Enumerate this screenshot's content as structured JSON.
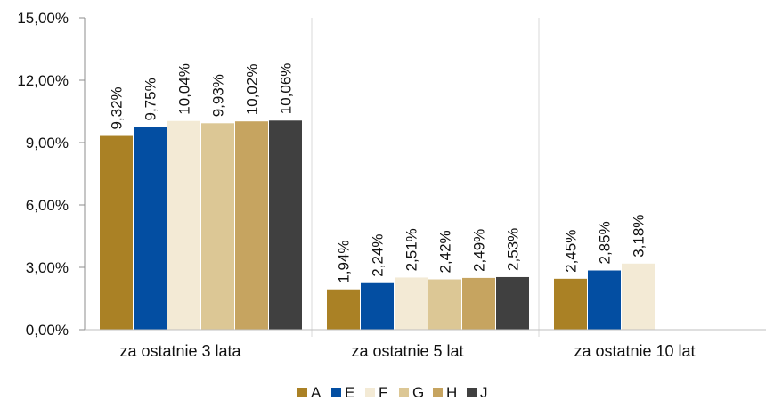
{
  "chart_data": {
    "type": "bar",
    "categories": [
      "za ostatnie 3 lata",
      "za ostatnie 5 lat",
      "za ostatnie 10 lat"
    ],
    "series": [
      {
        "name": "A",
        "color": "#AA8125",
        "values": [
          9.32,
          1.94,
          2.45
        ],
        "labels": [
          "9,32%",
          "1,94%",
          "2,45%"
        ]
      },
      {
        "name": "E",
        "color": "#034EA2",
        "values": [
          9.75,
          2.24,
          2.85
        ],
        "labels": [
          "9,75%",
          "2,24%",
          "2,85%"
        ]
      },
      {
        "name": "F",
        "color": "#F3EAD5",
        "values": [
          10.04,
          2.51,
          3.18
        ],
        "labels": [
          "10,04%",
          "2,51%",
          "3,18%"
        ]
      },
      {
        "name": "G",
        "color": "#DCC795",
        "values": [
          9.93,
          2.42,
          null
        ],
        "labels": [
          "9,93%",
          "2,42%",
          ""
        ]
      },
      {
        "name": "H",
        "color": "#C6A460",
        "values": [
          10.02,
          2.49,
          null
        ],
        "labels": [
          "10,02%",
          "2,49%",
          ""
        ]
      },
      {
        "name": "J",
        "color": "#404040",
        "values": [
          10.06,
          2.53,
          null
        ],
        "labels": [
          "10,06%",
          "2,53%",
          ""
        ]
      }
    ],
    "ylim": [
      0,
      15
    ],
    "yticks": [
      0,
      3,
      6,
      9,
      12,
      15
    ],
    "ytick_labels": [
      "0,00%",
      "3,00%",
      "6,00%",
      "9,00%",
      "12,00%",
      "15,00%"
    ],
    "legend_position": "bottom",
    "grid": false,
    "category_separators": true,
    "title": "",
    "xlabel": "",
    "ylabel": ""
  }
}
